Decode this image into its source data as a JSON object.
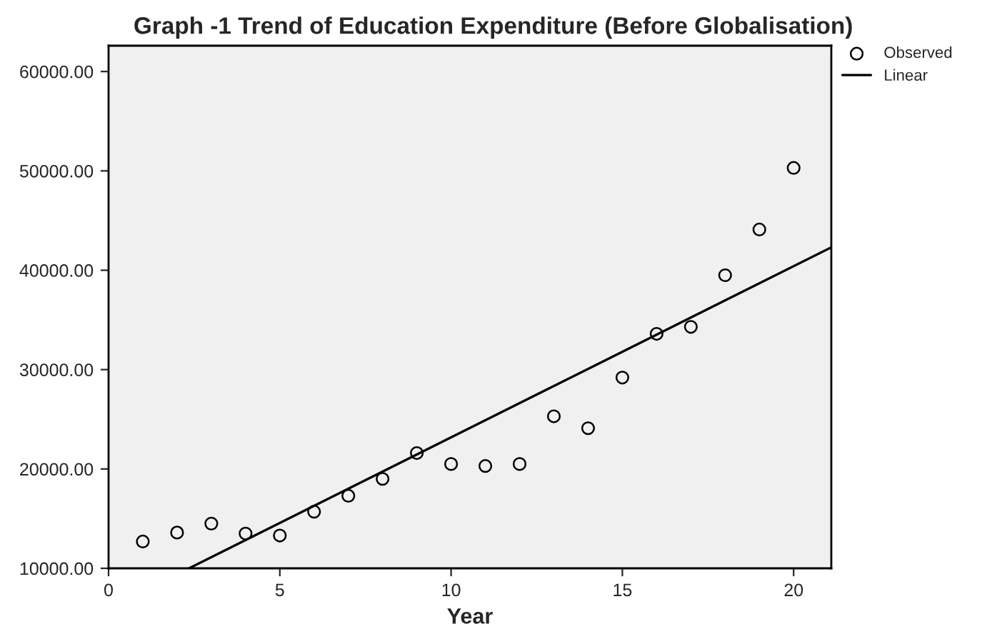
{
  "chart_data": {
    "type": "scatter",
    "title": "Graph -1 Trend of Education Expenditure (Before Globalisation)",
    "xlabel": "Year",
    "xlim": [
      0,
      21.1
    ],
    "xticks": [
      0,
      5,
      10,
      15,
      20
    ],
    "ylim": [
      10000,
      62600
    ],
    "yticks": [
      {
        "value": 10000,
        "label": "10000.00"
      },
      {
        "value": 20000,
        "label": "20000.00"
      },
      {
        "value": 30000,
        "label": "30000.00"
      },
      {
        "value": 40000,
        "label": "40000.00"
      },
      {
        "value": 50000,
        "label": "50000.00"
      },
      {
        "value": 60000,
        "label": "60000.00"
      }
    ],
    "grid": false,
    "legend": "top right",
    "series": [
      {
        "name": "Observed",
        "marker": "circle",
        "color": "#000000",
        "x": [
          1,
          2,
          3,
          4,
          5,
          6,
          7,
          8,
          9,
          10,
          11,
          12,
          13,
          14,
          15,
          16,
          17,
          18,
          19,
          20
        ],
        "values": [
          12700,
          13600,
          14500,
          13500,
          13300,
          15700,
          17300,
          19000,
          21600,
          20500,
          20300,
          20500,
          25300,
          24100,
          29200,
          33600,
          34300,
          39500,
          44100,
          50300
        ]
      },
      {
        "name": "Linear",
        "type": "line",
        "marker": "none",
        "color": "#000000",
        "x": [
          2.35,
          21.1
        ],
        "values": [
          10000,
          42300
        ]
      }
    ]
  }
}
